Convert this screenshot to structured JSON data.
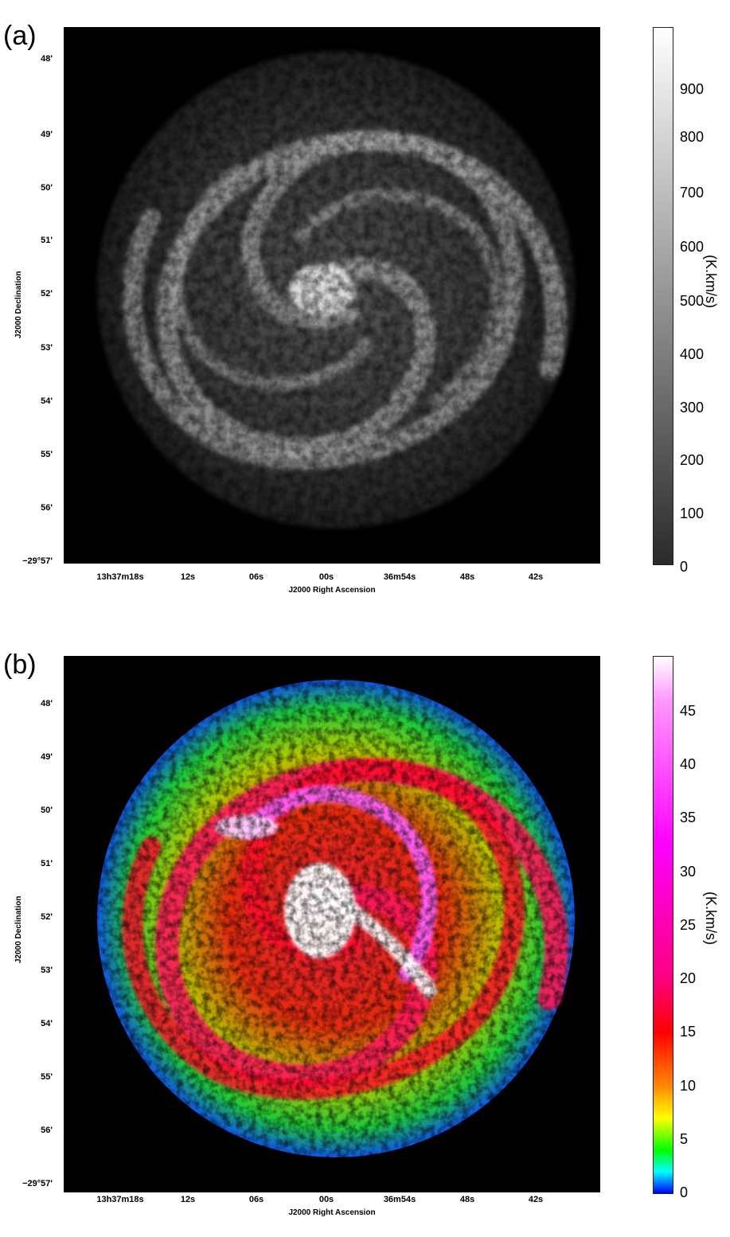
{
  "panels": [
    {
      "label": "(a)",
      "colormap": "grayscale",
      "dec_ticks": [
        "48'",
        "49'",
        "50'",
        "51'",
        "52'",
        "53'",
        "54'",
        "55'",
        "56'",
        "−29°57'"
      ],
      "ra_ticks": [
        "13h37m18s",
        "12s",
        "06s",
        "00s",
        "36m54s",
        "48s",
        "42s"
      ],
      "xlabel": "J2000 Right Ascension",
      "ylabel": "J2000 Declination",
      "colorbar": {
        "ticks": [
          "900",
          "800",
          "700",
          "600",
          "500",
          "400",
          "300",
          "200",
          "100",
          "0"
        ],
        "unit": "(K.km/s)",
        "colors": [
          "#ffffff",
          "#2a2a2a"
        ]
      }
    },
    {
      "label": "(b)",
      "colormap": "rainbow",
      "dec_ticks": [
        "48'",
        "49'",
        "50'",
        "51'",
        "52'",
        "53'",
        "54'",
        "55'",
        "56'",
        "−29°57'"
      ],
      "ra_ticks": [
        "13h37m18s",
        "12s",
        "06s",
        "00s",
        "36m54s",
        "48s",
        "42s"
      ],
      "xlabel": "J2000 Right Ascension",
      "ylabel": "J2000 Declination",
      "colorbar": {
        "ticks": [
          "45",
          "40",
          "35",
          "30",
          "25",
          "20",
          "15",
          "10",
          "5",
          "0"
        ],
        "unit": "(K.km/s)",
        "colors": [
          "#ffffff",
          "#ff66ff",
          "#ff00ff",
          "#ff0080",
          "#ff0000",
          "#ff8800",
          "#ffff00",
          "#00ff00",
          "#00ffff",
          "#0000ff"
        ]
      }
    }
  ]
}
